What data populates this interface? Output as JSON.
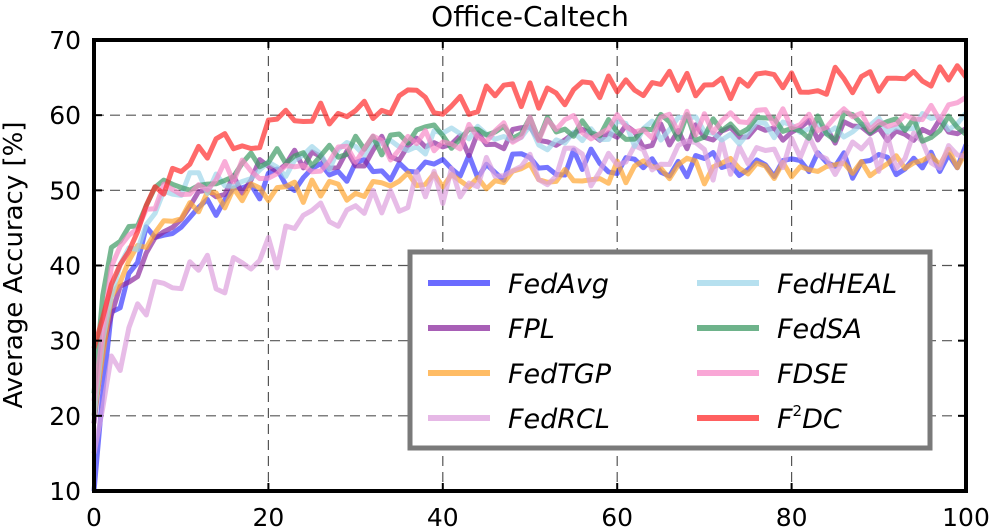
{
  "chart_data": {
    "type": "line",
    "title": "Office-Caltech",
    "xlabel": "",
    "ylabel": "Average Accuracy [%]",
    "xlim": [
      0,
      100
    ],
    "ylim": [
      10,
      70
    ],
    "xticks": [
      "0",
      "20",
      "40",
      "60",
      "80",
      "100"
    ],
    "yticks": [
      "10",
      "20",
      "30",
      "40",
      "50",
      "60",
      "70"
    ],
    "grid": true,
    "legend_position": "lower-right",
    "series": [
      {
        "name": "FedAvg",
        "color": "#3a3aff",
        "label_main": "FedAvg",
        "label_sup": "",
        "anchors": [
          [
            0,
            10
          ],
          [
            1,
            23
          ],
          [
            2,
            33
          ],
          [
            4,
            38
          ],
          [
            6,
            44
          ],
          [
            8,
            45
          ],
          [
            10,
            46
          ],
          [
            12,
            47
          ],
          [
            15,
            49
          ],
          [
            18,
            50
          ],
          [
            20,
            51
          ],
          [
            25,
            52
          ],
          [
            30,
            52.5
          ],
          [
            35,
            53
          ],
          [
            40,
            53.5
          ],
          [
            45,
            53
          ],
          [
            50,
            53
          ],
          [
            55,
            53.5
          ],
          [
            60,
            54
          ],
          [
            70,
            53.5
          ],
          [
            80,
            53.5
          ],
          [
            85,
            53
          ],
          [
            90,
            53.5
          ],
          [
            95,
            54
          ],
          [
            100,
            55
          ]
        ]
      },
      {
        "name": "FPL",
        "color": "#8b2a9e",
        "label_main": "FPL",
        "label_sup": "",
        "anchors": [
          [
            0,
            19
          ],
          [
            1,
            29
          ],
          [
            2,
            35
          ],
          [
            4,
            37
          ],
          [
            6,
            40
          ],
          [
            8,
            45
          ],
          [
            10,
            47
          ],
          [
            12,
            48
          ],
          [
            15,
            50
          ],
          [
            18,
            52
          ],
          [
            20,
            53
          ],
          [
            25,
            54
          ],
          [
            30,
            55
          ],
          [
            35,
            55.5
          ],
          [
            40,
            56
          ],
          [
            45,
            56.5
          ],
          [
            50,
            57
          ],
          [
            60,
            57
          ],
          [
            70,
            57.5
          ],
          [
            80,
            58
          ],
          [
            90,
            58
          ],
          [
            100,
            59
          ]
        ]
      },
      {
        "name": "FedTGP",
        "color": "#ffa531",
        "label_main": "FedTGP",
        "label_sup": "",
        "anchors": [
          [
            0,
            20
          ],
          [
            1,
            28
          ],
          [
            2,
            36
          ],
          [
            4,
            40
          ],
          [
            6,
            44
          ],
          [
            8,
            46
          ],
          [
            10,
            47
          ],
          [
            12,
            48
          ],
          [
            15,
            48.5
          ],
          [
            20,
            49.5
          ],
          [
            25,
            50
          ],
          [
            30,
            50.5
          ],
          [
            35,
            51
          ],
          [
            40,
            51.5
          ],
          [
            45,
            51.5
          ],
          [
            50,
            52
          ],
          [
            60,
            52
          ],
          [
            70,
            52.5
          ],
          [
            80,
            53
          ],
          [
            90,
            53.5
          ],
          [
            100,
            54
          ]
        ]
      },
      {
        "name": "FedRCL",
        "color": "#dda0dd",
        "label_main": "FedRCL",
        "label_sup": "",
        "anchors": [
          [
            0,
            15
          ],
          [
            1,
            21
          ],
          [
            2,
            26
          ],
          [
            4,
            31
          ],
          [
            6,
            35
          ],
          [
            8,
            37
          ],
          [
            10,
            38
          ],
          [
            12,
            39
          ],
          [
            15,
            38
          ],
          [
            18,
            39
          ],
          [
            20,
            41
          ],
          [
            22,
            43
          ],
          [
            25,
            45
          ],
          [
            28,
            47
          ],
          [
            30,
            48
          ],
          [
            35,
            50
          ],
          [
            40,
            51
          ],
          [
            45,
            52
          ],
          [
            50,
            52.5
          ],
          [
            55,
            53
          ],
          [
            60,
            53.5
          ],
          [
            70,
            54
          ],
          [
            80,
            54.5
          ],
          [
            90,
            55
          ],
          [
            100,
            55.5
          ]
        ]
      },
      {
        "name": "FedHEAL",
        "color": "#9ed6ea",
        "label_main": "FedHEAL",
        "label_sup": "",
        "anchors": [
          [
            0,
            20
          ],
          [
            1,
            30
          ],
          [
            2,
            37
          ],
          [
            4,
            42
          ],
          [
            6,
            46
          ],
          [
            8,
            49
          ],
          [
            10,
            50
          ],
          [
            12,
            51
          ],
          [
            15,
            52
          ],
          [
            20,
            53
          ],
          [
            25,
            54
          ],
          [
            30,
            55
          ],
          [
            35,
            56
          ],
          [
            40,
            56.5
          ],
          [
            50,
            57
          ],
          [
            60,
            57.5
          ],
          [
            70,
            58
          ],
          [
            80,
            58
          ],
          [
            90,
            58.5
          ],
          [
            100,
            59
          ]
        ]
      },
      {
        "name": "FedSA",
        "color": "#3d9a64",
        "label_main": "FedSA",
        "label_sup": "",
        "anchors": [
          [
            0,
            23
          ],
          [
            1,
            36
          ],
          [
            2,
            42
          ],
          [
            3,
            44
          ],
          [
            4,
            45
          ],
          [
            6,
            48
          ],
          [
            8,
            50
          ],
          [
            10,
            51
          ],
          [
            12,
            52
          ],
          [
            15,
            53
          ],
          [
            20,
            54
          ],
          [
            25,
            55
          ],
          [
            30,
            55.5
          ],
          [
            35,
            56
          ],
          [
            40,
            57
          ],
          [
            45,
            57.5
          ],
          [
            50,
            58
          ],
          [
            60,
            58
          ],
          [
            70,
            58.5
          ],
          [
            80,
            58.5
          ],
          [
            90,
            58.5
          ],
          [
            100,
            58
          ]
        ]
      },
      {
        "name": "FDSE",
        "color": "#f78ac8",
        "label_main": "FDSE",
        "label_sup": "",
        "anchors": [
          [
            0,
            22
          ],
          [
            1,
            31
          ],
          [
            2,
            38
          ],
          [
            4,
            44
          ],
          [
            6,
            47
          ],
          [
            8,
            49
          ],
          [
            10,
            50
          ],
          [
            12,
            51
          ],
          [
            15,
            52
          ],
          [
            20,
            53
          ],
          [
            25,
            54
          ],
          [
            30,
            55
          ],
          [
            35,
            56
          ],
          [
            40,
            57
          ],
          [
            45,
            57.5
          ],
          [
            50,
            58
          ],
          [
            60,
            58.5
          ],
          [
            70,
            59
          ],
          [
            80,
            59.5
          ],
          [
            90,
            60
          ],
          [
            100,
            61
          ]
        ]
      },
      {
        "name": "F2DC",
        "color": "#ff2b2b",
        "label_main": "F",
        "label_sup": "2",
        "label_rest": "DC",
        "anchors": [
          [
            0,
            29
          ],
          [
            1,
            33
          ],
          [
            2,
            38
          ],
          [
            4,
            42
          ],
          [
            6,
            47
          ],
          [
            8,
            51
          ],
          [
            10,
            53
          ],
          [
            12,
            55
          ],
          [
            15,
            56
          ],
          [
            18,
            57
          ],
          [
            20,
            58
          ],
          [
            22,
            60
          ],
          [
            25,
            60.5
          ],
          [
            30,
            61
          ],
          [
            35,
            61.5
          ],
          [
            40,
            61.5
          ],
          [
            45,
            62
          ],
          [
            50,
            62.5
          ],
          [
            55,
            63
          ],
          [
            60,
            63.5
          ],
          [
            65,
            64
          ],
          [
            70,
            64
          ],
          [
            75,
            64
          ],
          [
            80,
            64
          ],
          [
            85,
            64.5
          ],
          [
            90,
            65
          ],
          [
            95,
            65
          ],
          [
            100,
            65.5
          ]
        ]
      }
    ]
  }
}
